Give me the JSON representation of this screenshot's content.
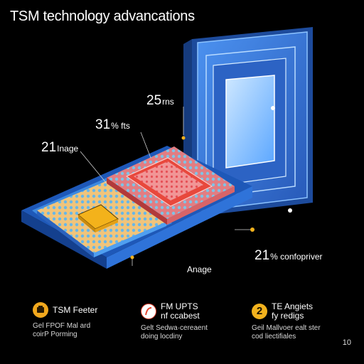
{
  "title": "TSM technology advancations",
  "callouts": [
    {
      "id": "a",
      "big": "25",
      "small": "rns"
    },
    {
      "id": "b",
      "big": "31",
      "small": "% fts"
    },
    {
      "id": "c",
      "big": "21",
      "small": "Inage"
    },
    {
      "id": "d",
      "big": "",
      "small": "Anage"
    },
    {
      "id": "e",
      "big": "21",
      "small": "% confopriver"
    }
  ],
  "features": [
    {
      "title": "TSM Feeter",
      "description": "Gel FPOF Mal ard\ncoirP Porming",
      "icon": "chip-icon",
      "icon_color": "#f2a81d"
    },
    {
      "title": "FM UPTS\nnf ccabest",
      "description": "Gelt Sedwa·cereaent\ndoing locdiny",
      "icon": "curve-icon",
      "icon_color": "#e8432e"
    },
    {
      "title": "TE Angiets\nfy redigs",
      "description": "Geil Mallvoer  ealt ster\ncod liectifiales",
      "icon": "number-icon",
      "icon_glyph": "2",
      "icon_color": "#f2b21d"
    }
  ],
  "page_number": "10",
  "colors": {
    "blue_panel": "#3a7de0",
    "red_die": "#e8483c",
    "gold_core": "#f3b21b",
    "chip_base": "#2e6fd1"
  }
}
